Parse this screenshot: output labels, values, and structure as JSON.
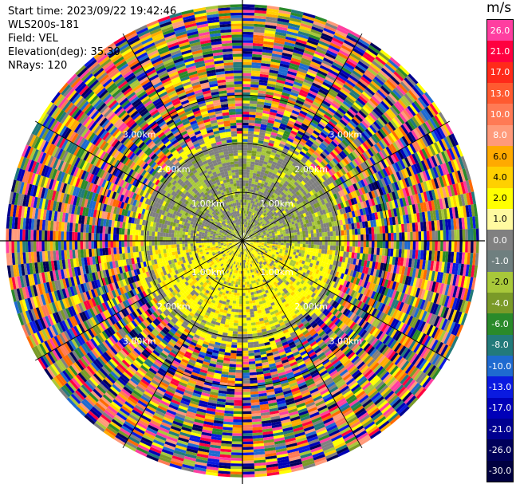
{
  "info": {
    "start_time": "Start time: 2023/09/22 19:42:46",
    "instrument": "WLS200s-181",
    "field": "Field: VEL",
    "elevation": "Elevation(deg): 35.30",
    "nrays": "NRays: 120"
  },
  "range_labels": [
    "1.00km",
    "2.00km",
    "3.00km"
  ],
  "colorbar": {
    "unit": "m/s",
    "labels": [
      "26.0",
      "21.0",
      "17.0",
      "13.0",
      "10.0",
      "8.0",
      "6.0",
      "4.0",
      "2.0",
      "1.0",
      "0.0",
      "-1.0",
      "-2.0",
      "-4.0",
      "-6.0",
      "-8.0",
      "-10.0",
      "-13.0",
      "-17.0",
      "-21.0",
      "-26.0",
      "-30.0"
    ],
    "colors": [
      "#ff3ea0",
      "#ff0040",
      "#ff2a1a",
      "#ff5a30",
      "#ff7a55",
      "#ff9a7a",
      "#ffaa00",
      "#ffd000",
      "#ffff00",
      "#fffaa0",
      "#808080",
      "#6f7f7f",
      "#a8c83a",
      "#7a9a28",
      "#2a8a2a",
      "#227a7a",
      "#1e6ad0",
      "#0a1ae0",
      "#0000b8",
      "#000090",
      "#00005a",
      "#000040"
    ]
  },
  "chart_data": {
    "type": "heatmap",
    "projection": "polar PPI",
    "rings_km": [
      1.0,
      2.0,
      3.0
    ],
    "max_range_km": 3.6,
    "n_rays": 120,
    "inner_pattern": "near-zero velocities (gray/green to the north, yellow/positive to the south)",
    "outer_pattern": "noise beyond ~2.3 km"
  }
}
